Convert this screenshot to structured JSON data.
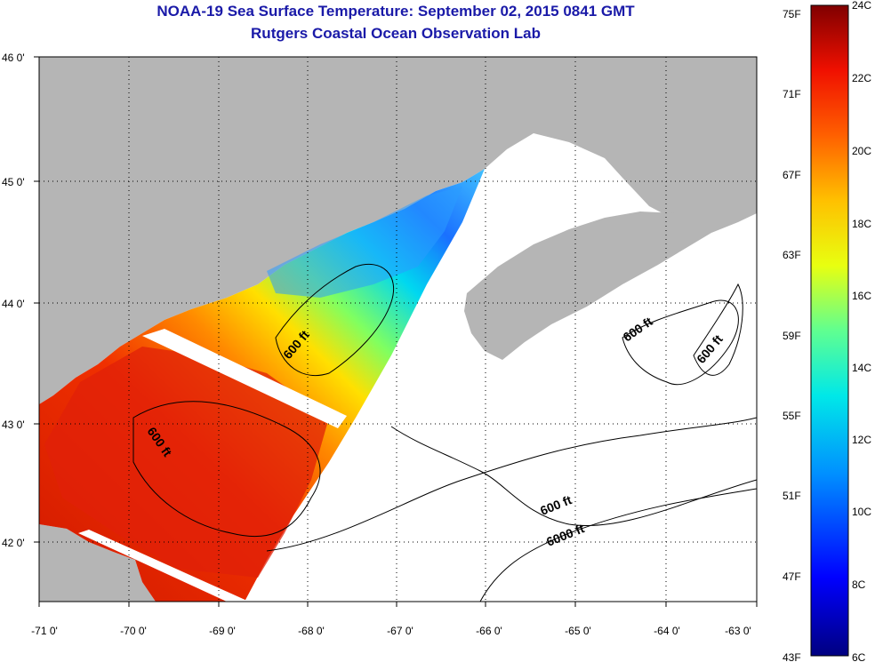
{
  "title": "NOAA-19 Sea Surface Temperature:  September 02, 2015 0841 GMT",
  "subtitle": "Rutgers Coastal Ocean Observation Lab",
  "map": {
    "lon_labels": [
      "-71 0'",
      "-70 0'",
      "-69 0'",
      "-68 0'",
      "-67 0'",
      "-66 0'",
      "-65 0'",
      "-64 0'",
      "-63 0'"
    ],
    "lat_labels": [
      "46 0'",
      "45 0'",
      "44 0'",
      "43 0'",
      "42 0'"
    ],
    "lon_range": [
      -71,
      -63
    ],
    "lat_range": [
      41.6,
      46
    ],
    "grid": "dotted",
    "colors": {
      "land": "#b5b5b5",
      "water_no_data": "#ffffff",
      "contour": "#000000"
    },
    "contour_labels": [
      "600 ft",
      "600 ft",
      "600 ft",
      "600 ft",
      "600 ft",
      "6000 ft"
    ]
  },
  "colorbar": {
    "f_labels": [
      "75F",
      "71F",
      "67F",
      "63F",
      "59F",
      "55F",
      "51F",
      "47F",
      "43F"
    ],
    "c_labels": [
      "24C",
      "22C",
      "20C",
      "18C",
      "16C",
      "14C",
      "12C",
      "10C",
      "8C",
      "6C"
    ],
    "range_c": [
      6,
      24
    ],
    "range_f": [
      43,
      75
    ],
    "colormap": [
      "#7a0000",
      "#c00000",
      "#ff2000",
      "#ff7a00",
      "#ffd000",
      "#f0ff00",
      "#70ff60",
      "#00e0e0",
      "#00a0ff",
      "#0040ff",
      "#0000d0",
      "#000080"
    ]
  }
}
